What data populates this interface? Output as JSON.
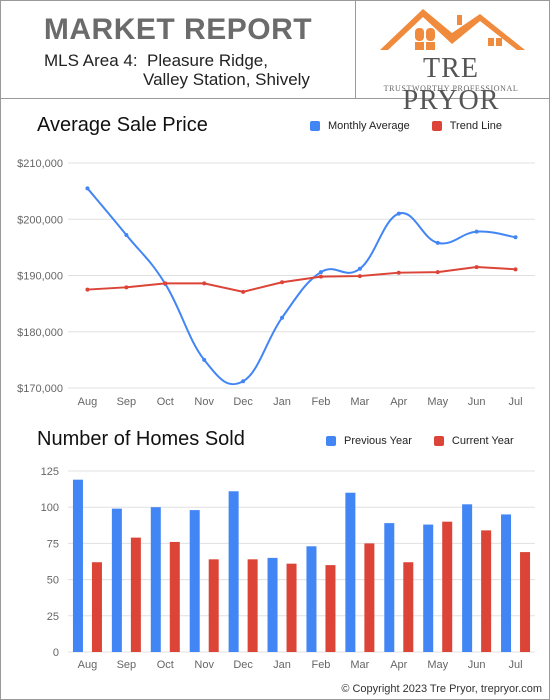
{
  "header": {
    "title": "MARKET REPORT",
    "area_line1": "MLS Area 4:  Pleasure Ridge,",
    "area_line2": "Valley Station, Shively",
    "brand_name": "TRE PRYOR",
    "brand_tagline": "TRUSTWORTHY PROFESSIONAL",
    "logo_color": "#f08a3c"
  },
  "footer": {
    "copyright": "© Copyright 2023 Tre Pryor, trepryor.com"
  },
  "chart_data": [
    {
      "type": "line",
      "title": "Average Sale Price",
      "categories": [
        "Aug",
        "Sep",
        "Oct",
        "Nov",
        "Dec",
        "Jan",
        "Feb",
        "Mar",
        "Apr",
        "May",
        "Jun",
        "Jul"
      ],
      "series": [
        {
          "name": "Monthly Average",
          "color": "#4285f4",
          "values": [
            205500,
            197200,
            188500,
            175000,
            171200,
            182500,
            190600,
            191200,
            201000,
            195800,
            197800,
            196800
          ]
        },
        {
          "name": "Trend Line",
          "color": "#db4437",
          "values": [
            187500,
            187900,
            188600,
            188600,
            187100,
            188800,
            189800,
            189900,
            190500,
            190600,
            191500,
            191100
          ]
        }
      ],
      "yticks": [
        "$170,000",
        "$180,000",
        "$190,000",
        "$200,000",
        "$210,000"
      ],
      "ylim": [
        170000,
        210000
      ],
      "grid": true,
      "legend": "top-right"
    },
    {
      "type": "bar",
      "title": "Number of Homes Sold",
      "categories": [
        "Aug",
        "Sep",
        "Oct",
        "Nov",
        "Dec",
        "Jan",
        "Feb",
        "Mar",
        "Apr",
        "May",
        "Jun",
        "Jul"
      ],
      "series": [
        {
          "name": "Previous Year",
          "color": "#4285f4",
          "values": [
            119,
            99,
            100,
            98,
            111,
            65,
            73,
            110,
            89,
            88,
            102,
            95
          ]
        },
        {
          "name": "Current Year",
          "color": "#db4437",
          "values": [
            62,
            79,
            76,
            64,
            64,
            61,
            60,
            75,
            62,
            90,
            84,
            69
          ]
        }
      ],
      "yticks": [
        "0",
        "25",
        "50",
        "75",
        "100",
        "125"
      ],
      "ylim": [
        0,
        125
      ],
      "grid": true,
      "legend": "top-right"
    }
  ]
}
